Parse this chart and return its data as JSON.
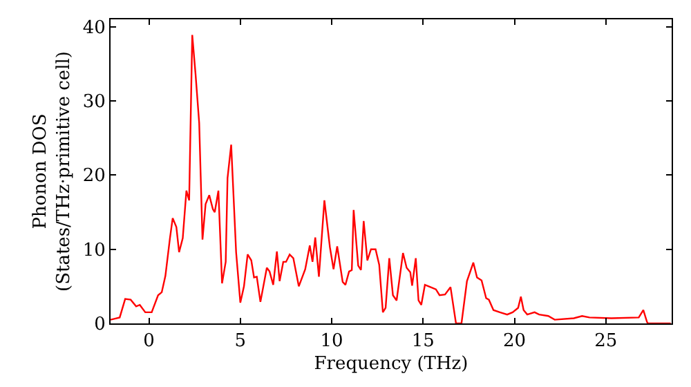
{
  "chart_data": {
    "type": "line",
    "xlabel": "Frequency (THz)",
    "ylabel": "Phonon DOS\n(States/THz·primitive cell)",
    "xlim": [
      -2.1,
      28.6
    ],
    "ylim": [
      0,
      41
    ],
    "xticks": [
      0,
      5,
      10,
      15,
      20,
      25
    ],
    "yticks": [
      0,
      10,
      20,
      30,
      40
    ],
    "marker": "none",
    "line_style": "solid",
    "series": [
      {
        "color": "#ff0000",
        "x": [
          -2.1,
          -1.6,
          -1.3,
          -1.0,
          -0.7,
          -0.5,
          -0.2,
          0.15,
          0.5,
          0.7,
          0.9,
          1.15,
          1.3,
          1.5,
          1.65,
          1.85,
          2.05,
          2.2,
          2.37,
          2.55,
          2.75,
          2.93,
          3.1,
          3.3,
          3.5,
          3.6,
          3.8,
          4.0,
          4.2,
          4.3,
          4.5,
          4.77,
          5.0,
          5.2,
          5.4,
          5.6,
          5.75,
          5.9,
          6.1,
          6.45,
          6.6,
          6.8,
          7.0,
          7.15,
          7.35,
          7.5,
          7.7,
          7.9,
          8.2,
          8.55,
          8.8,
          8.95,
          9.1,
          9.3,
          9.6,
          9.9,
          10.1,
          10.3,
          10.6,
          10.75,
          10.95,
          11.1,
          11.2,
          11.45,
          11.6,
          11.75,
          11.95,
          12.15,
          12.4,
          12.6,
          12.8,
          12.95,
          13.15,
          13.35,
          13.55,
          13.9,
          14.1,
          14.3,
          14.4,
          14.6,
          14.75,
          14.9,
          15.1,
          15.4,
          15.7,
          15.9,
          16.2,
          16.5,
          16.8,
          17.1,
          17.4,
          17.75,
          17.95,
          18.2,
          18.45,
          18.6,
          18.85,
          19.2,
          19.6,
          19.9,
          20.2,
          20.35,
          20.5,
          20.7,
          21.1,
          21.35,
          21.85,
          22.2,
          23.25,
          23.7,
          24.1,
          25.3,
          26.8,
          27.05,
          27.25,
          27.3,
          28.55
        ],
        "values": [
          0.5,
          0.8,
          3.3,
          3.2,
          2.3,
          2.5,
          1.5,
          1.5,
          3.8,
          4.2,
          6.4,
          11.5,
          14.2,
          13,
          9.6,
          11.5,
          17.9,
          16.6,
          38.9,
          33.6,
          27,
          11.3,
          16.1,
          17.3,
          15.4,
          15,
          17.9,
          5.4,
          8.3,
          19.6,
          24.1,
          9.6,
          2.8,
          5,
          9.3,
          8.5,
          6.2,
          6.3,
          2.9,
          7.5,
          7,
          5.2,
          9.7,
          5.7,
          8.3,
          8.3,
          9.3,
          8.8,
          5,
          7.3,
          10.5,
          8.3,
          11.6,
          6.3,
          16.6,
          10.3,
          7.3,
          10.4,
          5.6,
          5.2,
          7,
          7.2,
          15.3,
          7.8,
          7.2,
          13.8,
          8.5,
          10,
          10,
          7.9,
          1.5,
          2.1,
          8.8,
          3.8,
          3.1,
          9.5,
          7.5,
          6.9,
          5.1,
          8.8,
          3.1,
          2.5,
          5.2,
          4.9,
          4.6,
          3.8,
          3.9,
          4.9,
          0,
          0,
          5.7,
          8.2,
          6.2,
          5.8,
          3.4,
          3.2,
          1.8,
          1.5,
          1.2,
          1.5,
          2.1,
          3.6,
          1.8,
          1.2,
          1.5,
          1.2,
          1.0,
          0.5,
          0.7,
          1.0,
          0.8,
          0.7,
          0.8,
          1.8,
          0.2,
          0,
          0
        ]
      }
    ]
  }
}
